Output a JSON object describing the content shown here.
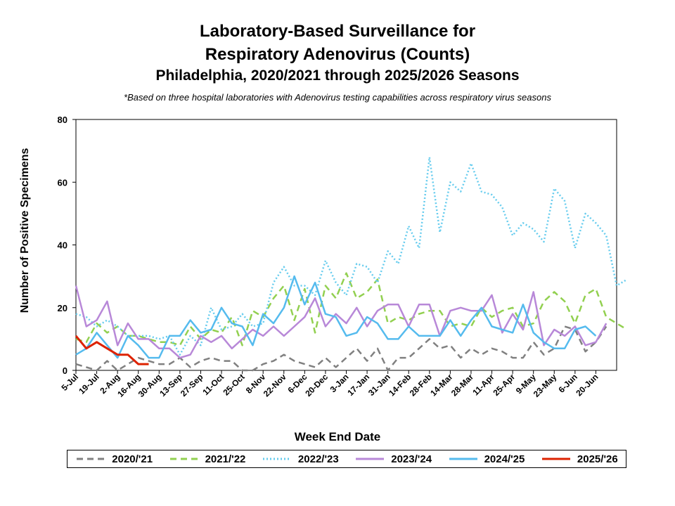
{
  "title_line1": "Laboratory-Based Surveillance for",
  "title_line2": "Respiratory Adenovirus (Counts)",
  "title_line3": "Philadelphia, 2020/2021 through 2025/2026 Seasons",
  "note": "*Based on three hospital laboratories with Adenovirus testing capabilities across respiratory virus seasons",
  "chart_data": {
    "type": "line",
    "title": "Laboratory-Based Surveillance for Respiratory Adenovirus (Counts)",
    "subtitle": "Philadelphia, 2020/2021 through 2025/2026 Seasons",
    "xlabel": "Week End Date",
    "ylabel": "Number of Positive Specimens",
    "ylim": [
      0,
      80
    ],
    "yticks": [
      0,
      20,
      40,
      60,
      80
    ],
    "grid": false,
    "legend_position": "bottom",
    "x_tick_labels": [
      "5-Jul",
      "19-Jul",
      "2-Aug",
      "16-Aug",
      "30-Aug",
      "13-Sep",
      "27-Sep",
      "11-Oct",
      "25-Oct",
      "8-Nov",
      "22-Nov",
      "6-Dec",
      "20-Dec",
      "3-Jan",
      "17-Jan",
      "31-Jan",
      "14-Feb",
      "28-Feb",
      "14-Mar",
      "28-Mar",
      "11-Apr",
      "25-Apr",
      "9-May",
      "23-May",
      "6-Jun",
      "20-Jun"
    ],
    "series": [
      {
        "name": "2020/'21",
        "color": "#808080",
        "style": "dashed",
        "values": [
          2,
          1,
          0,
          3,
          0,
          2,
          4,
          3,
          2,
          2,
          4,
          1,
          3,
          4,
          3,
          3,
          0,
          0,
          2,
          3,
          5,
          3,
          2,
          1,
          4,
          1,
          4,
          7,
          3,
          7,
          0,
          4,
          4,
          7,
          10,
          7,
          8,
          4,
          7,
          5,
          7,
          6,
          4,
          4,
          9,
          5,
          7,
          14,
          13,
          6,
          9,
          14
        ]
      },
      {
        "name": "2021/'22",
        "color": "#92d050",
        "style": "dashed",
        "values": [
          10,
          9,
          15,
          12,
          14,
          11,
          11,
          10,
          9,
          9,
          8,
          14,
          10,
          13,
          12,
          17,
          8,
          19,
          17,
          23,
          27,
          16,
          26,
          12,
          27,
          23,
          31,
          23,
          25,
          29,
          15,
          17,
          16,
          18,
          19,
          19,
          14,
          15,
          14,
          20,
          17,
          19,
          20,
          14,
          15,
          22,
          25,
          22,
          15,
          24,
          26,
          17,
          15,
          13
        ]
      },
      {
        "name": "2022/'23",
        "color": "#66ccee",
        "style": "dotted",
        "values": [
          18,
          17,
          14,
          16,
          14,
          11,
          11,
          11,
          10,
          11,
          5,
          11,
          8,
          20,
          13,
          14,
          18,
          14,
          15,
          28,
          33,
          27,
          27,
          24,
          35,
          28,
          24,
          34,
          33,
          28,
          38,
          34,
          46,
          39,
          68,
          44,
          60,
          57,
          66,
          57,
          56,
          52,
          43,
          47,
          45,
          41,
          58,
          54,
          39,
          50,
          47,
          43,
          27,
          29
        ]
      },
      {
        "name": "2023/'24",
        "color": "#b888d8",
        "style": "solid",
        "values": [
          27,
          14,
          16,
          22,
          8,
          15,
          10,
          10,
          7,
          7,
          4,
          5,
          11,
          9,
          11,
          7,
          10,
          13,
          11,
          14,
          11,
          14,
          17,
          23,
          14,
          18,
          15,
          20,
          14,
          19,
          21,
          21,
          14,
          21,
          21,
          11,
          19,
          20,
          19,
          19,
          24,
          12,
          18,
          13,
          25,
          8,
          13,
          11,
          14,
          8,
          9,
          15
        ]
      },
      {
        "name": "2024/'25",
        "color": "#55bbee",
        "style": "solid",
        "values": [
          5,
          7,
          12,
          8,
          4,
          11,
          8,
          4,
          4,
          11,
          11,
          16,
          12,
          13,
          20,
          15,
          14,
          8,
          18,
          15,
          20,
          30,
          21,
          28,
          18,
          17,
          11,
          12,
          17,
          15,
          10,
          10,
          14,
          11,
          11,
          11,
          16,
          11,
          16,
          20,
          14,
          13,
          12,
          21,
          12,
          9,
          7,
          7,
          13,
          14,
          11
        ]
      },
      {
        "name": "2025/'26",
        "color": "#dd2200",
        "style": "solid",
        "values": [
          11,
          7,
          9,
          7,
          5,
          5,
          2,
          2
        ]
      }
    ]
  }
}
